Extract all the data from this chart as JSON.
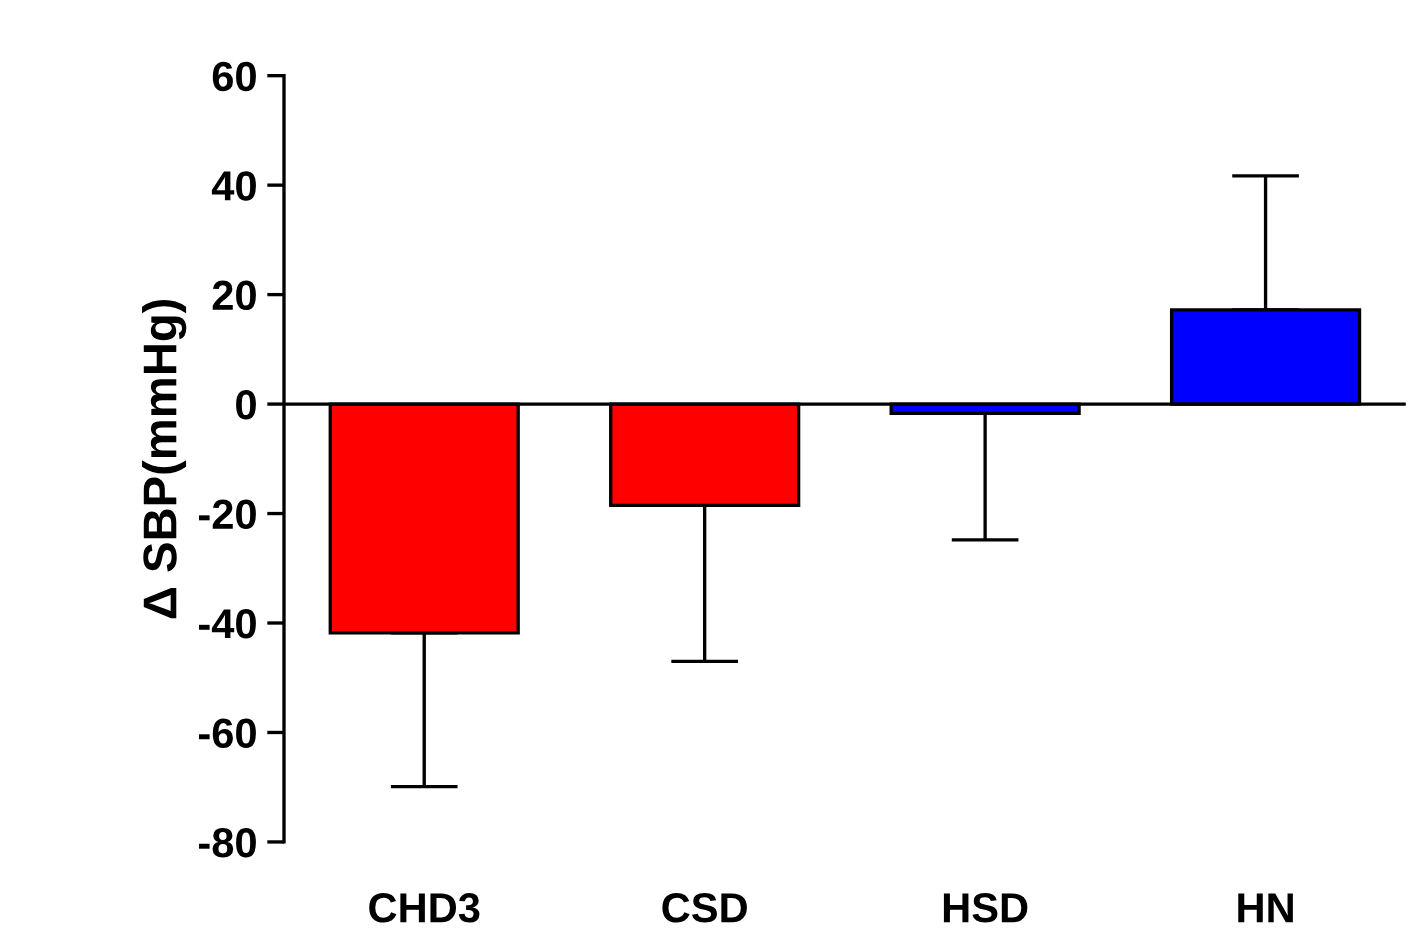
{
  "chart_data": {
    "type": "bar",
    "ylabel": "Δ SBP(mmHg)",
    "categories": [
      "CHD3",
      "CSD",
      "HSD",
      "HN"
    ],
    "values": [
      -41.8,
      -18.5,
      -1.7,
      17.2
    ],
    "colors": [
      "#ff0000",
      "#ff0000",
      "#0000ff",
      "#0000ff"
    ],
    "errors": [
      [
        -69.9,
        -41.8
      ],
      [
        -47,
        -18.5
      ],
      [
        -24.8,
        -1.7
      ],
      [
        17.2,
        41.7
      ]
    ],
    "ylim": [
      -80,
      60
    ],
    "yticks": [
      -80,
      -60,
      -40,
      -20,
      0,
      20,
      40,
      60
    ],
    "grid": false,
    "ref_lines": [
      {
        "axis": "y",
        "value": 0,
        "color": "#000000",
        "line_style": "solid"
      }
    ],
    "legend": false
  }
}
